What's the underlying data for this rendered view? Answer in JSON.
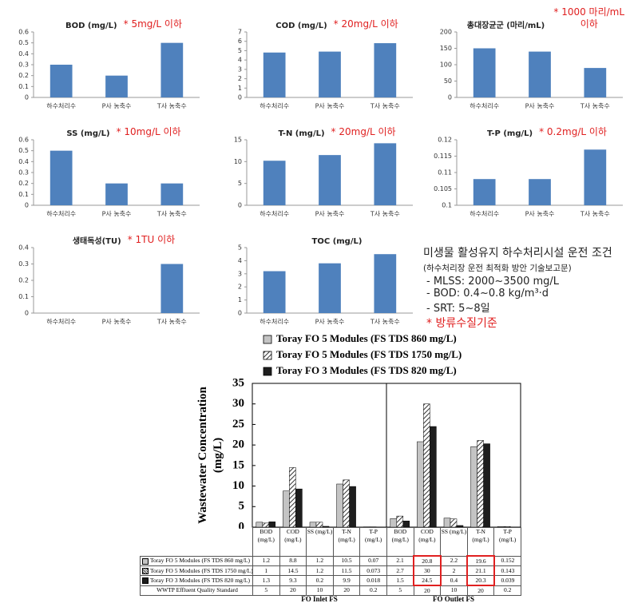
{
  "chart_data": [
    {
      "type": "bar",
      "title": "BOD (mg/L)",
      "annotation": "* 5mg/L 이하",
      "categories": [
        "하수처리수",
        "P사 농축수",
        "T사 농축수"
      ],
      "values": [
        0.3,
        0.2,
        0.5
      ],
      "color": "#4f81bd",
      "ylim": [
        0,
        0.6
      ],
      "yticks": [
        0,
        0.1,
        0.2,
        0.3,
        0.4,
        0.5,
        0.6
      ]
    },
    {
      "type": "bar",
      "title": "COD (mg/L)",
      "annotation": "* 20mg/L 이하",
      "categories": [
        "하수처리수",
        "P사 농축수",
        "T사 농축수"
      ],
      "values": [
        4.8,
        4.9,
        5.8
      ],
      "color": "#4f81bd",
      "ylim": [
        0,
        7
      ],
      "yticks": [
        0,
        1,
        2,
        3,
        4,
        5,
        6,
        7
      ]
    },
    {
      "type": "bar",
      "title": "총대장균군 (마리/mL)",
      "annotation": "* 1000 마리/mL 이하",
      "categories": [
        "하수처리수",
        "P사 농축수",
        "T사 농축수"
      ],
      "values": [
        150,
        140,
        90
      ],
      "color": "#4f81bd",
      "ylim": [
        0,
        200
      ],
      "yticks": [
        0,
        50,
        100,
        150,
        200
      ]
    },
    {
      "type": "bar",
      "title": "SS (mg/L)",
      "annotation": "* 10mg/L 이하",
      "categories": [
        "하수처리수",
        "P사 농축수",
        "T사 농축수"
      ],
      "values": [
        0.5,
        0.2,
        0.2
      ],
      "color": "#4f81bd",
      "ylim": [
        0,
        0.6
      ],
      "yticks": [
        0,
        0.1,
        0.2,
        0.3,
        0.4,
        0.5,
        0.6
      ]
    },
    {
      "type": "bar",
      "title": "T-N (mg/L)",
      "annotation": "* 20mg/L 이하",
      "categories": [
        "하수처리수",
        "P사 농축수",
        "T사 농축수"
      ],
      "values": [
        10.2,
        11.5,
        14.2
      ],
      "color": "#4f81bd",
      "ylim": [
        0,
        15
      ],
      "yticks": [
        0,
        5,
        10,
        15
      ]
    },
    {
      "type": "bar",
      "title": "T-P (mg/L)",
      "annotation": "* 0.2mg/L 이하",
      "categories": [
        "하수처리수",
        "P사 농축수",
        "T사 농축수"
      ],
      "values": [
        0.108,
        0.108,
        0.117
      ],
      "color": "#4f81bd",
      "ylim": [
        0.1,
        0.12
      ],
      "yticks": [
        0.1,
        0.105,
        0.11,
        0.115,
        0.12
      ]
    },
    {
      "type": "bar",
      "title": "생태독성(TU)",
      "annotation": "* 1TU 이하",
      "categories": [
        "하수처리수",
        "P사 농축수",
        "T사 농축수"
      ],
      "values": [
        0,
        0,
        0.3
      ],
      "color": "#4f81bd",
      "ylim": [
        0,
        0.4
      ],
      "yticks": [
        0,
        0.1,
        0.2,
        0.3,
        0.4
      ]
    },
    {
      "type": "bar",
      "title": "TOC (mg/L)",
      "categories": [
        "하수처리수",
        "P사 농축수",
        "T사 농축수"
      ],
      "values": [
        3.2,
        3.8,
        4.5
      ],
      "color": "#4f81bd",
      "ylim": [
        0,
        5
      ],
      "yticks": [
        0,
        1,
        2,
        3,
        4,
        5
      ]
    },
    {
      "type": "bar",
      "y_label": "Wastewater Concentration (mg/L)",
      "categories": [
        "BOD (mg/L)",
        "COD (mg/L)",
        "SS (mg/L)",
        "T-N (mg/L)",
        "T-P (mg/L)",
        "BOD (mg/L)",
        "COD (mg/L)",
        "SS (mg/L)",
        "T-N (mg/L)",
        "T-P (mg/L)"
      ],
      "series": [
        {
          "name": "Toray FO 5 Modules (FS TDS 860 mg/L)",
          "color": "#c4c4c4",
          "pattern": "solid",
          "values": [
            1.2,
            8.8,
            1.2,
            10.5,
            0.07,
            2.1,
            20.8,
            2.2,
            19.6,
            0.152
          ]
        },
        {
          "name": "Toray FO 5 Modules (FS TDS 1750 mg/L)",
          "color": "#333333",
          "pattern": "hatch",
          "values": [
            1,
            14.5,
            1.2,
            11.5,
            0.073,
            2.7,
            30,
            2,
            21.1,
            0.143
          ]
        },
        {
          "name": "Toray FO 3 Modules (FS TDS 820 mg/L)",
          "color": "#1e1e1e",
          "pattern": "solid",
          "values": [
            1.3,
            9.3,
            0.2,
            9.9,
            0.018,
            1.5,
            24.5,
            0.4,
            20.3,
            0.039
          ]
        }
      ],
      "standard": {
        "label": "WWTP Effluent Quality Standard",
        "values": [
          5,
          20,
          10,
          20,
          0.2,
          5,
          20,
          10,
          20,
          0.2
        ]
      },
      "group_labels": [
        "FO Inlet FS",
        "FO Outlet FS"
      ],
      "highlight_columns": [
        6,
        8
      ],
      "ylim": [
        0,
        35
      ],
      "yticks": [
        0,
        5,
        10,
        15,
        20,
        25,
        30,
        35
      ]
    }
  ],
  "note": {
    "title": "미생물 활성유지 하수처리시설 운전 조건",
    "subtitle": "(하수처리장 운전 최적화 방안 기술보고문)",
    "items": [
      "- MLSS: 2000~3500 mg/L",
      "- BOD: 0.4~0.8 kg/m³·d",
      "- SRT: 5~8일"
    ],
    "remark": "* 방류수질기준"
  }
}
